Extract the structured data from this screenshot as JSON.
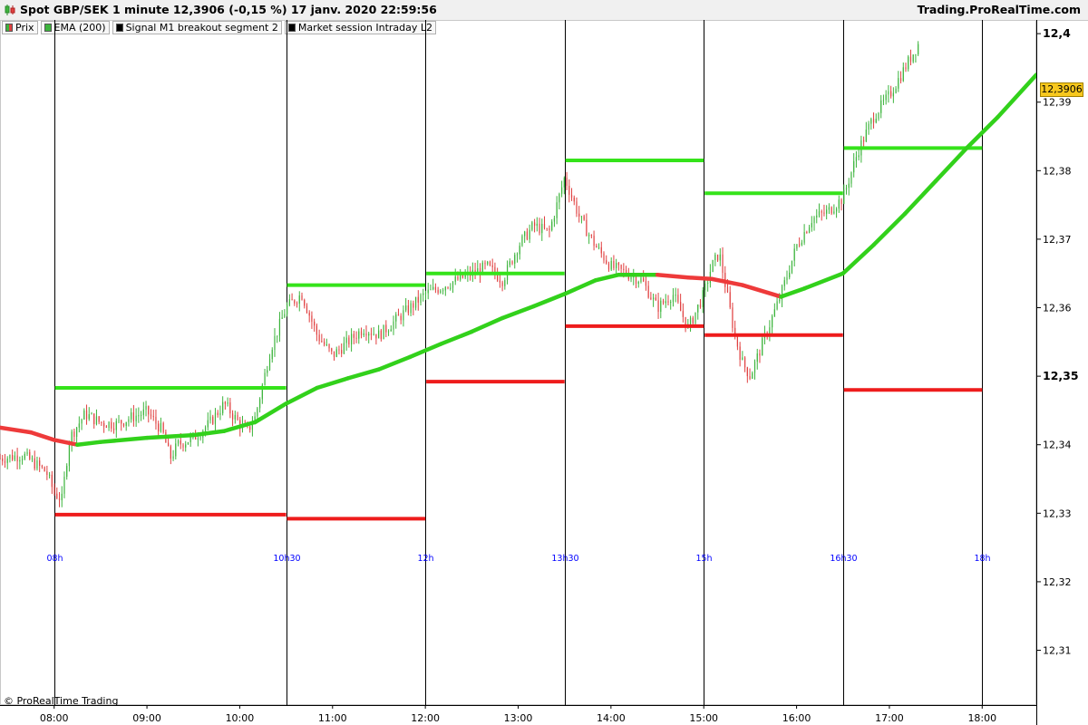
{
  "header": {
    "title": "Spot GBP/SEK 1 minute 12,3906 (-0,15 %) 17 janv. 2020 22:59:56",
    "brand": "Trading.ProRealTime.com"
  },
  "legend": [
    {
      "label": "Prix",
      "color": "#3cb43c"
    },
    {
      "label": "EMA (200)",
      "color": "#3cb43c"
    },
    {
      "label": "Signal M1 breakout segment 2",
      "color": "#000000"
    },
    {
      "label": "Market session Intraday L2",
      "color": "#000000"
    }
  ],
  "copyright": "© ProRealTime Trading",
  "last_price_label": "12,3906",
  "chart_data": {
    "type": "line",
    "x_axis": {
      "range": [
        "07:25",
        "18:35"
      ],
      "tick_labels": [
        "08:00",
        "09:00",
        "10:00",
        "11:00",
        "12:00",
        "13:00",
        "14:00",
        "15:00",
        "16:00",
        "17:00",
        "18:00"
      ],
      "tick_values": [
        "08:00",
        "09:00",
        "10:00",
        "11:00",
        "12:00",
        "13:00",
        "14:00",
        "15:00",
        "16:00",
        "17:00",
        "18:00"
      ]
    },
    "y_axis": {
      "range": [
        12.302,
        12.402
      ],
      "tick_labels": [
        "12,4",
        "12,39",
        "12,38",
        "12,37",
        "12,36",
        "12,35",
        "12,34",
        "12,33",
        "12,32",
        "12,31"
      ],
      "tick_values": [
        12.4,
        12.39,
        12.38,
        12.37,
        12.36,
        12.35,
        12.34,
        12.33,
        12.32,
        12.31
      ],
      "major_labels": [
        "12,4",
        "12,35"
      ]
    },
    "last_price": 12.3906,
    "session_lines": [
      {
        "time": "08:00",
        "label": "08h"
      },
      {
        "time": "10:30",
        "label": "10h30"
      },
      {
        "time": "12:00",
        "label": "12h"
      },
      {
        "time": "13:30",
        "label": "13h30"
      },
      {
        "time": "15:00",
        "label": "15h"
      },
      {
        "time": "16:30",
        "label": "16h30"
      },
      {
        "time": "18:00",
        "label": "18h"
      }
    ],
    "breakout_levels": [
      {
        "start": "08:00",
        "end": "10:30",
        "high": 12.3483,
        "low": 12.3298
      },
      {
        "start": "10:30",
        "end": "12:00",
        "high": 12.3633,
        "low": 12.3292
      },
      {
        "start": "12:00",
        "end": "13:30",
        "high": 12.365,
        "low": 12.3492
      },
      {
        "start": "13:30",
        "end": "15:00",
        "high": 12.3815,
        "low": 12.3573
      },
      {
        "start": "15:00",
        "end": "16:30",
        "high": 12.3767,
        "low": 12.356
      },
      {
        "start": "16:30",
        "end": "18:00",
        "high": 12.3833,
        "low": 12.348
      }
    ],
    "ema": {
      "name": "EMA (200)",
      "x": [
        "07:25",
        "07:45",
        "08:00",
        "08:15",
        "08:30",
        "09:00",
        "09:30",
        "09:50",
        "10:10",
        "10:30",
        "10:50",
        "11:10",
        "11:30",
        "11:50",
        "12:10",
        "12:30",
        "12:50",
        "13:10",
        "13:30",
        "13:50",
        "14:05",
        "14:30",
        "14:50",
        "15:05",
        "15:25",
        "15:50",
        "16:05",
        "16:30",
        "16:50",
        "17:10",
        "17:30",
        "17:50",
        "18:10",
        "18:35"
      ],
      "y": [
        12.3425,
        12.3418,
        12.3407,
        12.34,
        12.3404,
        12.341,
        12.3414,
        12.342,
        12.3433,
        12.346,
        12.3483,
        12.3497,
        12.351,
        12.3528,
        12.3547,
        12.3565,
        12.3585,
        12.3602,
        12.362,
        12.364,
        12.3648,
        12.3648,
        12.3644,
        12.3642,
        12.3633,
        12.3616,
        12.3628,
        12.365,
        12.3692,
        12.3737,
        12.3785,
        12.3833,
        12.3878,
        12.394
      ],
      "color_up": "#32d11b",
      "color_down": "#ee3a3a"
    },
    "price": {
      "name": "Prix",
      "x": [
        "07:25",
        "07:40",
        "07:55",
        "08:00",
        "08:05",
        "08:10",
        "08:20",
        "08:30",
        "08:40",
        "08:50",
        "09:00",
        "09:10",
        "09:15",
        "09:20",
        "09:30",
        "09:40",
        "09:50",
        "10:00",
        "10:05",
        "10:10",
        "10:20",
        "10:30",
        "10:40",
        "10:50",
        "11:00",
        "11:10",
        "11:20",
        "11:30",
        "11:40",
        "11:50",
        "12:00",
        "12:10",
        "12:20",
        "12:30",
        "12:40",
        "12:50",
        "13:00",
        "13:10",
        "13:20",
        "13:30",
        "13:40",
        "13:50",
        "14:00",
        "14:10",
        "14:20",
        "14:30",
        "14:40",
        "14:50",
        "15:00",
        "15:05",
        "15:10",
        "15:15",
        "15:20",
        "15:25",
        "15:30",
        "15:40",
        "15:50",
        "16:00",
        "16:10",
        "16:20",
        "16:30",
        "16:40",
        "16:50",
        "17:00",
        "17:10",
        "17:20"
      ],
      "y": [
        12.338,
        12.3385,
        12.336,
        12.333,
        12.332,
        12.341,
        12.3445,
        12.3432,
        12.343,
        12.344,
        12.3448,
        12.342,
        12.338,
        12.34,
        12.341,
        12.343,
        12.346,
        12.343,
        12.342,
        12.344,
        12.354,
        12.36,
        12.362,
        12.356,
        12.353,
        12.355,
        12.357,
        12.356,
        12.358,
        12.36,
        12.362,
        12.363,
        12.364,
        12.365,
        12.366,
        12.364,
        12.369,
        12.372,
        12.371,
        12.379,
        12.373,
        12.369,
        12.366,
        12.365,
        12.364,
        12.36,
        12.362,
        12.357,
        12.362,
        12.366,
        12.368,
        12.362,
        12.356,
        12.352,
        12.35,
        12.356,
        12.362,
        12.369,
        12.373,
        12.374,
        12.376,
        12.383,
        12.388,
        12.391,
        12.395,
        12.399
      ]
    }
  }
}
